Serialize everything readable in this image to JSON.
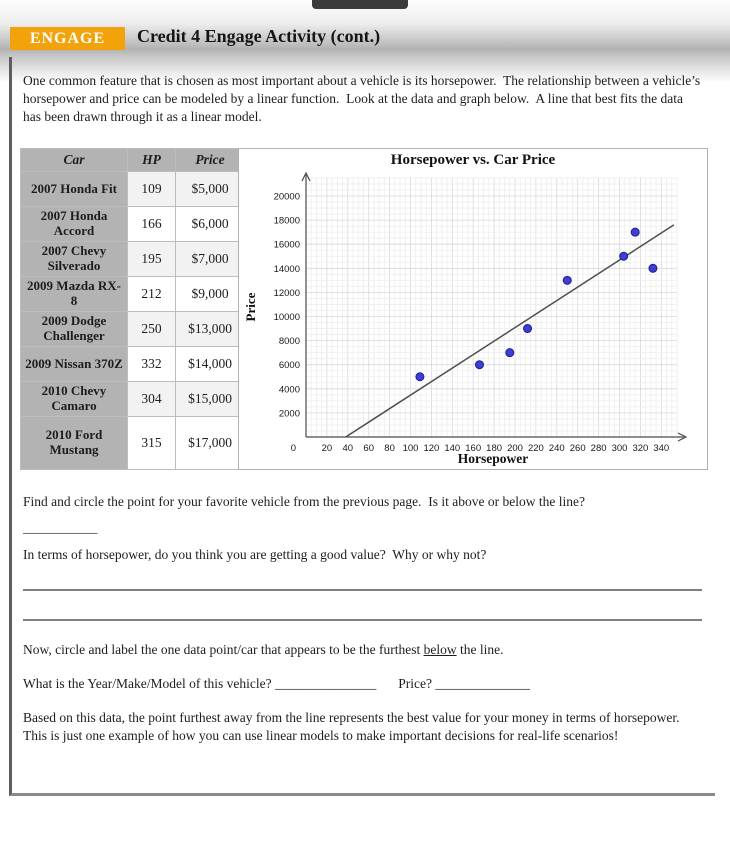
{
  "window": {
    "tab_color": "#3b3b3b"
  },
  "header": {
    "badge": "ENGAGE",
    "badge_color": "#F2A30B",
    "title": "Credit 4 Engage Activity (cont.)"
  },
  "intro": "One common feature that is chosen as most important about a vehicle is its horsepower.  The relationship between a vehicle’s horsepower and price can be modeled by a linear function.  Look at the data and graph below.  A line that best fits the data has been drawn through it as a linear model.",
  "table": {
    "headers": [
      "Car",
      "HP",
      "Price"
    ],
    "rows": [
      [
        "2007 Honda Fit",
        "109",
        "$5,000"
      ],
      [
        "2007 Honda Accord",
        "166",
        "$6,000"
      ],
      [
        "2007 Chevy Silverado",
        "195",
        "$7,000"
      ],
      [
        "2009 Mazda RX-8",
        "212",
        "$9,000"
      ],
      [
        "2009 Dodge Challenger",
        "250",
        "$13,000"
      ],
      [
        "2009 Nissan 370Z",
        "332",
        "$14,000"
      ],
      [
        "2010 Chevy Camaro",
        "304",
        "$15,000"
      ],
      [
        "2010 Ford Mustang",
        "315",
        "$17,000"
      ]
    ]
  },
  "chart_data": {
    "type": "scatter",
    "title": "Horsepower vs. Car Price",
    "xlabel": "Horsepower",
    "ylabel": "Price",
    "xlim": [
      0,
      355
    ],
    "ylim": [
      0,
      21500
    ],
    "x_ticks": [
      20,
      40,
      60,
      80,
      100,
      120,
      140,
      160,
      180,
      200,
      220,
      240,
      260,
      280,
      300,
      320,
      340
    ],
    "y_ticks": [
      2000,
      4000,
      6000,
      8000,
      10000,
      12000,
      14000,
      16000,
      18000,
      20000
    ],
    "origin_label": "0",
    "x_tick_step": 20,
    "y_tick_step": 2000,
    "minor_step_x": 5,
    "minor_step_y": 500,
    "grid": true,
    "legend": "none",
    "points": [
      [
        109,
        5000
      ],
      [
        166,
        6000
      ],
      [
        195,
        7000
      ],
      [
        212,
        9000
      ],
      [
        250,
        13000
      ],
      [
        304,
        15000
      ],
      [
        315,
        17000
      ],
      [
        332,
        14000
      ]
    ],
    "trend_line": {
      "x1": 38,
      "y1": 0,
      "x2": 352,
      "y2": 17600
    },
    "point_fill": "#3e3ed2",
    "point_stroke": "#1d1d90",
    "line_color": "#4d4d4d",
    "grid_minor_color": "#ededed",
    "grid_major_color": "#d8d8d8",
    "axis_color": "#4a4a4a"
  },
  "questions": {
    "q1": "Find and circle the point for your favorite vehicle from the previous page.  Is it above or below the line?",
    "q1_blank": "___________",
    "q2": "In terms of horsepower, do you think you are getting a good value?  Why or why not?",
    "q3_prefix": "Now, circle and label the one data point/car that appears to be the furthest ",
    "q3_underlined": "below",
    "q3_suffix": " the line.",
    "q4_label": "What is the Year/Make/Model of this vehicle? ",
    "q4_blank": "_______________",
    "q4_price_label": "Price? ",
    "q4_price_blank": "______________",
    "closing": "Based on this data, the point furthest away from the line represents the best value for your money in terms of horsepower.  This is just one example of how you can use linear models to make important decisions for real-life scenarios!"
  }
}
